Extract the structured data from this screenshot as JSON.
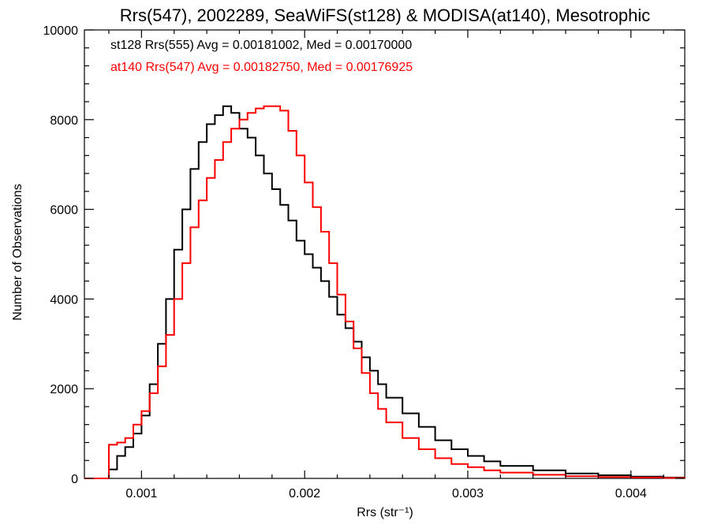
{
  "chart_data": {
    "type": "line",
    "title": "Rrs(547), 2002289, SeaWiFS(st128) & MODISA(at140), Mesotrophic",
    "xlabel": "Rrs (str⁻¹)",
    "ylabel": "Number of Observations",
    "xlim": [
      0.00065,
      0.00433
    ],
    "ylim": [
      0,
      10000
    ],
    "xticks": [
      {
        "value": 0.001,
        "label": "0.001"
      },
      {
        "value": 0.002,
        "label": "0.002"
      },
      {
        "value": 0.003,
        "label": "0.003"
      },
      {
        "value": 0.004,
        "label": "0.004"
      }
    ],
    "yticks": [
      {
        "value": 0,
        "label": "0"
      },
      {
        "value": 2000,
        "label": "2000"
      },
      {
        "value": 4000,
        "label": "4000"
      },
      {
        "value": 6000,
        "label": "6000"
      },
      {
        "value": 8000,
        "label": "8000"
      },
      {
        "value": 10000,
        "label": "10000"
      }
    ],
    "grid": false,
    "annotations": [
      {
        "text": "st128 Rrs(555) Avg = 0.00181002, Med = 0.00170000",
        "color": "#000000"
      },
      {
        "text": "at140 Rrs(547) Avg = 0.00182750, Med = 0.00176925",
        "color": "#ff0000"
      }
    ],
    "series": [
      {
        "color": "#000000",
        "x": [
          0.00065,
          0.0007,
          0.00075,
          0.00078,
          0.0008,
          0.00085,
          0.0009,
          0.00095,
          0.001,
          0.00105,
          0.0011,
          0.00115,
          0.0012,
          0.00125,
          0.0013,
          0.00135,
          0.0014,
          0.00145,
          0.0015,
          0.00155,
          0.0016,
          0.00165,
          0.0017,
          0.00175,
          0.0018,
          0.00185,
          0.0019,
          0.00195,
          0.002,
          0.00205,
          0.0021,
          0.00215,
          0.0022,
          0.00225,
          0.0023,
          0.00235,
          0.0024,
          0.00245,
          0.0025,
          0.0026,
          0.0027,
          0.0028,
          0.0029,
          0.003,
          0.0031,
          0.0032,
          0.0034,
          0.0036,
          0.0038,
          0.004,
          0.0042,
          0.00433
        ],
        "y": [
          0,
          0,
          0,
          0,
          200,
          500,
          700,
          1000,
          1400,
          2100,
          3000,
          4000,
          5100,
          6000,
          6900,
          7500,
          7900,
          8100,
          8300,
          8150,
          7800,
          7600,
          7200,
          6800,
          6450,
          6100,
          5750,
          5300,
          5000,
          4700,
          4400,
          4050,
          3650,
          3350,
          3050,
          2700,
          2400,
          2100,
          1800,
          1450,
          1150,
          850,
          650,
          500,
          380,
          280,
          180,
          110,
          70,
          40,
          20,
          0
        ]
      },
      {
        "color": "#ff0000",
        "x": [
          0.00065,
          0.0007,
          0.00075,
          0.00078,
          0.0008,
          0.00085,
          0.0009,
          0.00095,
          0.001,
          0.00105,
          0.0011,
          0.00115,
          0.0012,
          0.00125,
          0.0013,
          0.00135,
          0.0014,
          0.00145,
          0.0015,
          0.00155,
          0.0016,
          0.00165,
          0.0017,
          0.00175,
          0.0018,
          0.00185,
          0.0019,
          0.00195,
          0.002,
          0.00205,
          0.0021,
          0.00215,
          0.0022,
          0.00225,
          0.0023,
          0.00235,
          0.0024,
          0.00245,
          0.0025,
          0.0026,
          0.0027,
          0.0028,
          0.0029,
          0.003,
          0.0031,
          0.0032,
          0.0034,
          0.0036,
          0.0038,
          0.004,
          0.0042,
          0.00433
        ],
        "y": [
          0,
          0,
          0,
          0,
          750,
          800,
          900,
          1200,
          1500,
          1900,
          2500,
          3200,
          4000,
          4800,
          5600,
          6200,
          6700,
          7100,
          7500,
          7800,
          8000,
          8150,
          8250,
          8300,
          8300,
          8200,
          7750,
          7200,
          6600,
          6050,
          5500,
          4800,
          4100,
          3500,
          2900,
          2350,
          1900,
          1550,
          1250,
          900,
          650,
          450,
          320,
          250,
          180,
          130,
          80,
          50,
          30,
          20,
          10,
          0
        ]
      }
    ]
  }
}
